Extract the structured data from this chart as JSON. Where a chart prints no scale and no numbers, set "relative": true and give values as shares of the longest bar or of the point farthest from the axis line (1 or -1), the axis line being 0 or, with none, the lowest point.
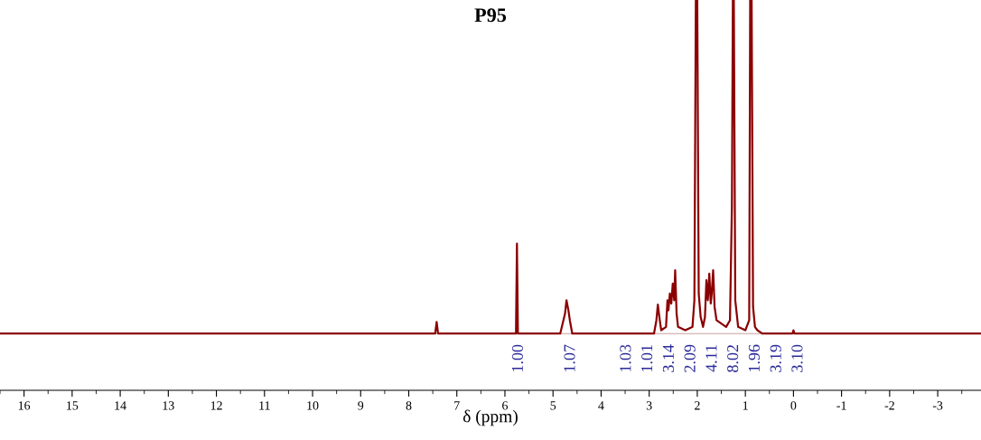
{
  "chart_data": {
    "type": "line",
    "title": "P95",
    "xlabel": "δ (ppm)",
    "relative": true,
    "xlim": [
      16.5,
      -3.9
    ],
    "xticks": [
      16,
      15,
      14,
      13,
      12,
      11,
      10,
      9,
      8,
      7,
      6,
      5,
      4,
      3,
      2,
      1,
      0,
      {
        "value": -1,
        "label": "-1"
      },
      {
        "value": -2,
        "label": "-2"
      },
      {
        "value": -3,
        "label": "-3"
      }
    ],
    "series": [
      {
        "color": "#8b0000",
        "x": [
          16.5,
          9,
          7.45,
          7.42,
          7.39,
          6.0,
          5.77,
          5.75,
          5.73,
          4.85,
          4.75,
          4.72,
          4.68,
          4.65,
          4.6,
          2.9,
          2.85,
          2.82,
          2.78,
          2.75,
          2.65,
          2.62,
          2.6,
          2.57,
          2.54,
          2.51,
          2.48,
          2.46,
          2.43,
          2.4,
          2.25,
          2.1,
          2.06,
          2.03,
          2.0,
          1.97,
          1.93,
          1.88,
          1.84,
          1.81,
          1.78,
          1.75,
          1.72,
          1.7,
          1.67,
          1.64,
          1.6,
          1.5,
          1.4,
          1.32,
          1.28,
          1.26,
          1.24,
          1.21,
          1.15,
          1.0,
          0.92,
          0.9,
          0.87,
          0.84,
          0.8,
          0.75,
          0.65,
          0.02,
          0.0,
          -0.02,
          -3.9
        ],
        "values": [
          0,
          0,
          0,
          0.035,
          0,
          0,
          0,
          0.27,
          0,
          0,
          0.06,
          0.1,
          0.07,
          0.04,
          0,
          0,
          0.04,
          0.087,
          0.04,
          0.01,
          0.02,
          0.1,
          0.07,
          0.12,
          0.09,
          0.15,
          0.1,
          0.19,
          0.06,
          0.02,
          0.01,
          0.02,
          0.1,
          1.0,
          1.0,
          0.12,
          0.05,
          0.02,
          0.05,
          0.16,
          0.1,
          0.18,
          0.09,
          0.12,
          0.19,
          0.08,
          0.04,
          0.03,
          0.02,
          0.04,
          0.38,
          1.0,
          1.0,
          0.1,
          0.02,
          0.01,
          0.04,
          1.0,
          1.0,
          0.08,
          0.02,
          0.01,
          0,
          0,
          0.01,
          0,
          0
        ]
      }
    ],
    "annotations": [
      "1.00",
      "1.07",
      "1.03",
      "1.01",
      "3.14",
      "2.09",
      "4.11",
      "8.02",
      "1.96",
      "3.19",
      "3.10"
    ]
  }
}
